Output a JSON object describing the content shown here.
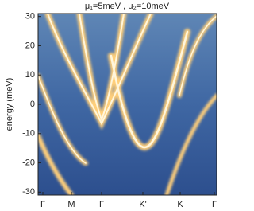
{
  "chart_data": {
    "type": "band-structure",
    "title": "μ₁=5meV , μ₂=10meV",
    "y_label": "energy (meV)",
    "categories": [
      "Γ",
      "M",
      "Γ",
      "K'",
      "K",
      "Γ"
    ],
    "ylim": [
      -31,
      31
    ],
    "yticks": [
      -30,
      -20,
      -10,
      0,
      10,
      20,
      30
    ]
  }
}
